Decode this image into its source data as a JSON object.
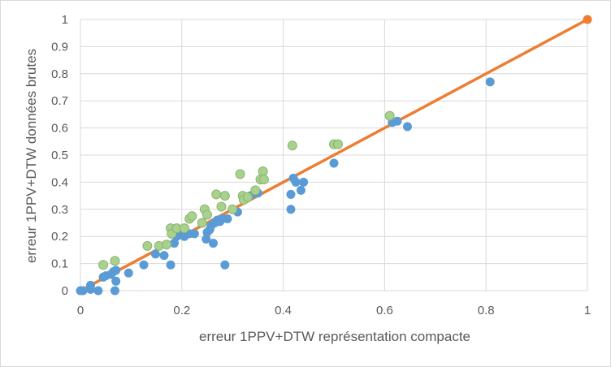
{
  "chart_data": {
    "type": "scatter",
    "title": "",
    "xlabel": "erreur 1PPV+DTW représentation compacte",
    "ylabel": "erreur 1PPV+DTW données brutes",
    "xlim": [
      0,
      1
    ],
    "ylim": [
      0,
      1
    ],
    "xticks": [
      "0",
      "0.2",
      "0.4",
      "0.6",
      "0.8",
      "1"
    ],
    "yticks": [
      "0",
      "0.1",
      "0.2",
      "0.3",
      "0.4",
      "0.5",
      "0.6",
      "0.7",
      "0.8",
      "0.9",
      "1"
    ],
    "grid": true,
    "legend": "none",
    "colors": {
      "blue": "#5b9bd5",
      "green": "#a9d18e",
      "green_edge": "#8ab56e",
      "line": "#ed7d31",
      "grid": "#d9d9d9"
    },
    "series": [
      {
        "color": "blue",
        "points": [
          [
            0.0,
            0.0
          ],
          [
            0.005,
            0.0
          ],
          [
            0.02,
            0.005
          ],
          [
            0.02,
            0.02
          ],
          [
            0.035,
            0.0
          ],
          [
            0.045,
            0.05
          ],
          [
            0.05,
            0.055
          ],
          [
            0.06,
            0.06
          ],
          [
            0.065,
            0.07
          ],
          [
            0.07,
            0.075
          ],
          [
            0.07,
            0.035
          ],
          [
            0.068,
            0.0
          ],
          [
            0.095,
            0.065
          ],
          [
            0.125,
            0.095
          ],
          [
            0.148,
            0.135
          ],
          [
            0.165,
            0.13
          ],
          [
            0.178,
            0.095
          ],
          [
            0.185,
            0.175
          ],
          [
            0.19,
            0.2
          ],
          [
            0.2,
            0.21
          ],
          [
            0.205,
            0.2
          ],
          [
            0.215,
            0.21
          ],
          [
            0.225,
            0.21
          ],
          [
            0.248,
            0.19
          ],
          [
            0.25,
            0.215
          ],
          [
            0.255,
            0.225
          ],
          [
            0.258,
            0.24
          ],
          [
            0.262,
            0.175
          ],
          [
            0.265,
            0.25
          ],
          [
            0.27,
            0.26
          ],
          [
            0.275,
            0.255
          ],
          [
            0.28,
            0.265
          ],
          [
            0.285,
            0.095
          ],
          [
            0.29,
            0.265
          ],
          [
            0.31,
            0.29
          ],
          [
            0.335,
            0.35
          ],
          [
            0.345,
            0.36
          ],
          [
            0.35,
            0.36
          ],
          [
            0.415,
            0.355
          ],
          [
            0.415,
            0.3
          ],
          [
            0.42,
            0.415
          ],
          [
            0.425,
            0.4
          ],
          [
            0.435,
            0.37
          ],
          [
            0.44,
            0.4
          ],
          [
            0.5,
            0.47
          ],
          [
            0.615,
            0.62
          ],
          [
            0.625,
            0.625
          ],
          [
            0.645,
            0.605
          ],
          [
            0.808,
            0.77
          ]
        ]
      },
      {
        "color": "green",
        "points": [
          [
            0.045,
            0.095
          ],
          [
            0.068,
            0.11
          ],
          [
            0.132,
            0.165
          ],
          [
            0.155,
            0.165
          ],
          [
            0.17,
            0.17
          ],
          [
            0.178,
            0.23
          ],
          [
            0.18,
            0.21
          ],
          [
            0.19,
            0.23
          ],
          [
            0.205,
            0.23
          ],
          [
            0.215,
            0.265
          ],
          [
            0.22,
            0.275
          ],
          [
            0.24,
            0.25
          ],
          [
            0.245,
            0.3
          ],
          [
            0.25,
            0.28
          ],
          [
            0.268,
            0.355
          ],
          [
            0.278,
            0.31
          ],
          [
            0.285,
            0.35
          ],
          [
            0.3,
            0.3
          ],
          [
            0.315,
            0.43
          ],
          [
            0.32,
            0.35
          ],
          [
            0.322,
            0.335
          ],
          [
            0.33,
            0.345
          ],
          [
            0.345,
            0.37
          ],
          [
            0.355,
            0.41
          ],
          [
            0.36,
            0.44
          ],
          [
            0.362,
            0.41
          ],
          [
            0.418,
            0.535
          ],
          [
            0.5,
            0.54
          ],
          [
            0.508,
            0.54
          ],
          [
            0.61,
            0.645
          ]
        ]
      },
      {
        "color": "line",
        "type": "line",
        "points": [
          [
            0,
            0
          ],
          [
            1,
            1
          ]
        ]
      }
    ]
  }
}
